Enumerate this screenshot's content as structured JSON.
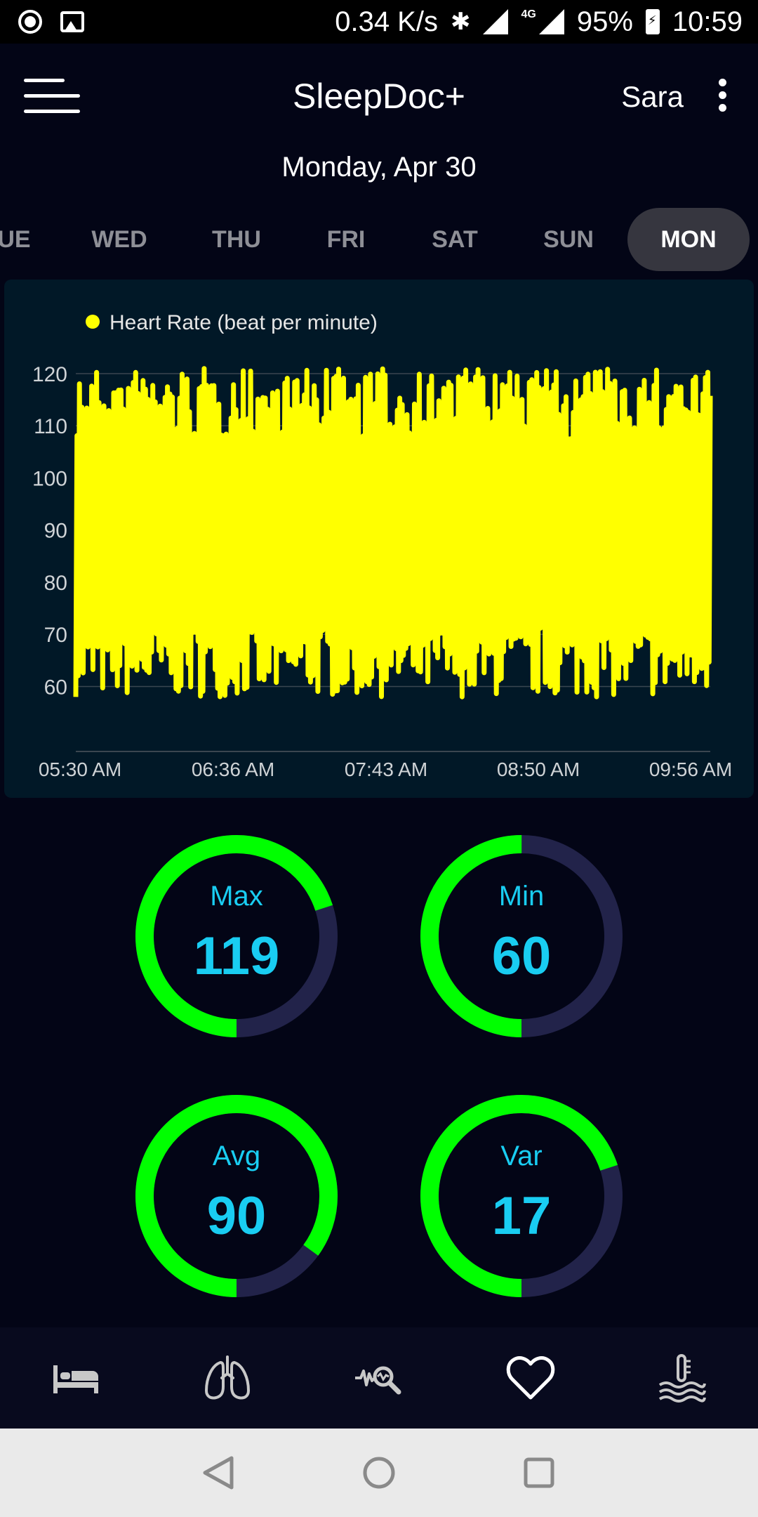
{
  "status_bar": {
    "speed": "0.34 K/s",
    "network": "4G",
    "battery": "95%",
    "time": "10:59"
  },
  "app_bar": {
    "title": "SleepDoc+",
    "user": "Sara"
  },
  "date_label": "Monday, Apr 30",
  "day_tabs": [
    "UE",
    "WED",
    "THU",
    "FRI",
    "SAT",
    "SUN",
    "MON"
  ],
  "active_day": "MON",
  "colors": {
    "background": "#030516",
    "chart_background": "#011827",
    "line": "#ffff00",
    "ring_fill": "#00ff00",
    "ring_track": "#22234a",
    "ring_text": "#19cdf2"
  },
  "chart_data": {
    "type": "line",
    "legend": [
      "Heart Rate (beat per minute)"
    ],
    "legend_position": "top-left",
    "series": [
      {
        "name": "Heart Rate (beat per minute)",
        "color": "#ffff00",
        "range": [
          58,
          121
        ]
      }
    ],
    "x_ticks": [
      "05:30 AM",
      "06:36 AM",
      "07:43 AM",
      "08:50 AM",
      "09:56 AM"
    ],
    "y_ticks": [
      60,
      70,
      80,
      90,
      100,
      110,
      120
    ],
    "ylim": [
      54,
      120
    ],
    "grid": true
  },
  "stats": [
    {
      "label": "Max",
      "value": "119",
      "fraction": 0.7
    },
    {
      "label": "Min",
      "value": "60",
      "fraction": 0.5
    },
    {
      "label": "Avg",
      "value": "90",
      "fraction": 0.85
    },
    {
      "label": "Var",
      "value": "17",
      "fraction": 0.7
    }
  ],
  "bottom_nav": [
    "bed-icon",
    "lungs-icon",
    "wave-search-icon",
    "heart-icon",
    "temperature-water-icon"
  ],
  "active_nav": "heart-icon",
  "system_nav": [
    "back-icon",
    "home-icon",
    "recents-icon"
  ]
}
